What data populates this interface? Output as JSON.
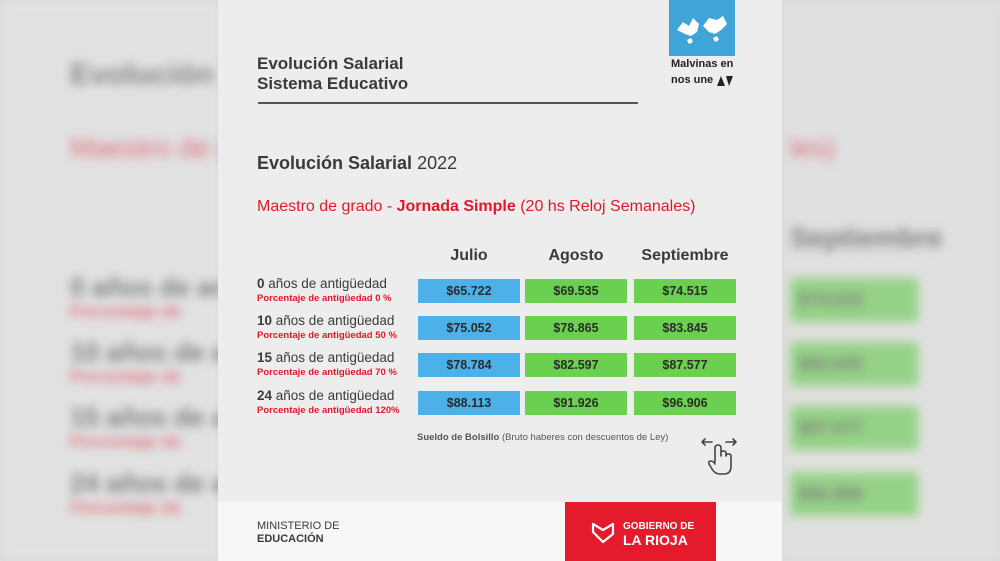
{
  "header": {
    "title_line1": "Evolución Salarial",
    "title_line2": "Sistema Educativo"
  },
  "logo": {
    "line1": "Malvinas en",
    "line2": "nos une",
    "color": "#3fa4d8"
  },
  "section": {
    "title_bold": "Evolución Salarial",
    "title_year": "2022"
  },
  "subtitle": {
    "prefix": "Maestro de grado - ",
    "bold": "Jornada Simple",
    "suffix": " (20 hs Reloj Semanales)"
  },
  "table": {
    "columns": [
      "Julio",
      "Agosto",
      "Septiembre"
    ],
    "rows": [
      {
        "years": "0",
        "label": " años de antigüedad",
        "pct": "Porcentaje de antigüedad 0 %",
        "values": [
          "$65.722",
          "$69.535",
          "$74.515"
        ]
      },
      {
        "years": "10",
        "label": " años de antigüedad",
        "pct": "Porcentaje de antigüedad 50 %",
        "values": [
          "$75.052",
          "$78.865",
          "$83.845"
        ]
      },
      {
        "years": "15",
        "label": " años de antigüedad",
        "pct": "Porcentaje de antigüedad 70 %",
        "values": [
          "$78.784",
          "$82.597",
          "$87.577"
        ]
      },
      {
        "years": "24",
        "label": " años de antigüedad",
        "pct": "Porcentaje de antigüedad 120%",
        "values": [
          "$88.113",
          "$91.926",
          "$96.906"
        ]
      }
    ]
  },
  "note": {
    "bold": "Sueldo de Bolsillo",
    "rest": " (Bruto haberes con descuentos de Ley)"
  },
  "footer": {
    "ministry_line1": "MINISTERIO DE",
    "ministry_line2": "EDUCACIÓN",
    "gov_line1": "GOBIERNO DE",
    "gov_line2": "LA RIOJA"
  },
  "colors": {
    "accent_red": "#e0182c",
    "cell_blue": "#4bb1e8",
    "cell_green": "#6bd04f"
  },
  "background_blur": {
    "title": "Evolución S",
    "subtitle_left": "Maestro de gr",
    "subtitle_right": "les)",
    "column": "Septiembre",
    "rows_left": [
      "0 años de antig",
      "10 años de antig",
      "15 años de ant",
      "24 años de ant"
    ],
    "pct_left": [
      "Porcentaje de",
      "Porcentaje de",
      "Porcentaje de",
      "Porcentaje de"
    ],
    "values_right": [
      "$74.515",
      "$83.845",
      "$87.577",
      "$96.906"
    ]
  }
}
